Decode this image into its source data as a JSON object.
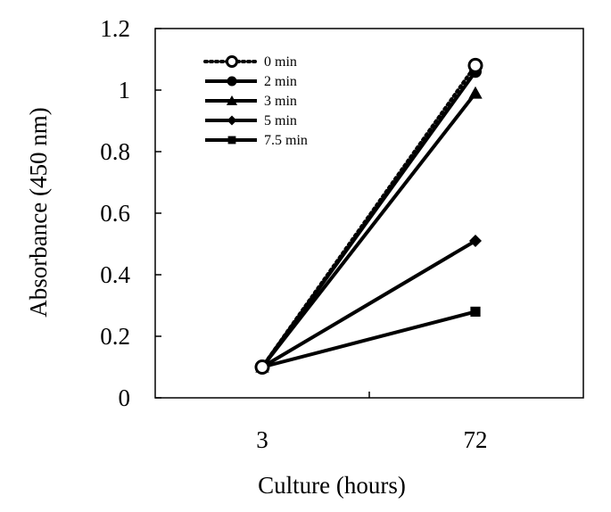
{
  "chart_data": {
    "type": "line",
    "title": "",
    "xlabel": "Culture (hours)",
    "ylabel": "Absorbance (450 nm)",
    "categories": [
      "3",
      "72"
    ],
    "ylim": [
      0,
      1.2
    ],
    "yticks": [
      "0",
      "0.2",
      "0.4",
      "0.6",
      "0.8",
      "1",
      "1.2"
    ],
    "grid": false,
    "legend_position": "top-left",
    "series": [
      {
        "name": "0 min",
        "values": [
          0.1,
          1.08
        ],
        "marker": "open-circle",
        "line": "dotted"
      },
      {
        "name": "2 min",
        "values": [
          0.1,
          1.06
        ],
        "marker": "circle",
        "line": "solid"
      },
      {
        "name": "3 min",
        "values": [
          0.1,
          0.99
        ],
        "marker": "triangle",
        "line": "solid"
      },
      {
        "name": "5 min",
        "values": [
          0.1,
          0.51
        ],
        "marker": "diamond",
        "line": "solid"
      },
      {
        "name": "7.5 min",
        "values": [
          0.1,
          0.28
        ],
        "marker": "square",
        "line": "solid"
      }
    ],
    "colors": {
      "line": "#000000",
      "background": "#ffffff"
    }
  }
}
